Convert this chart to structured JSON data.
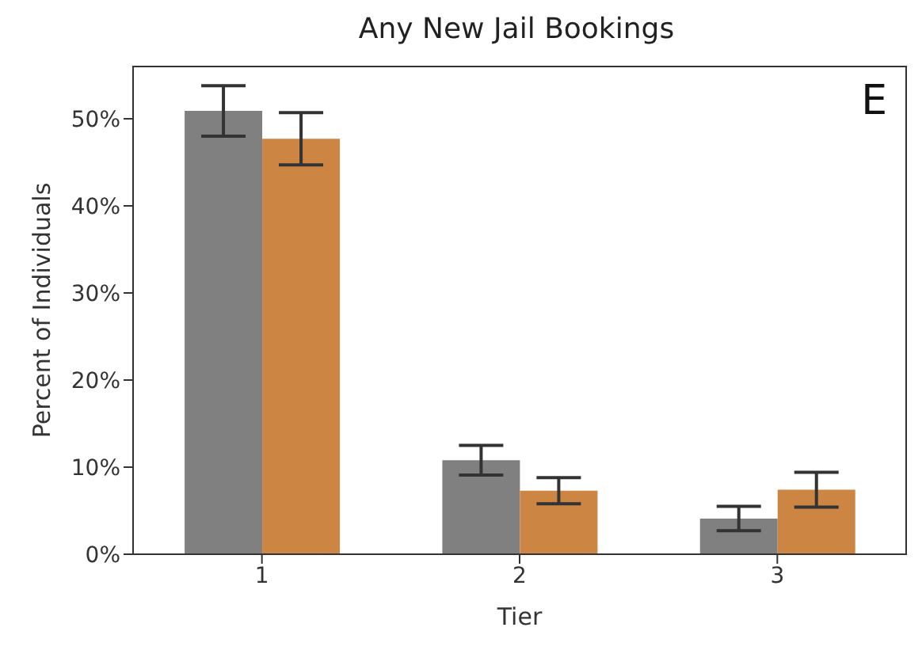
{
  "chart_data": {
    "type": "bar",
    "title": "Any New Jail Bookings",
    "xlabel": "Tier",
    "ylabel": "Percent of Individuals",
    "annotations": [
      "E"
    ],
    "categories": [
      "1",
      "2",
      "3"
    ],
    "series": [
      {
        "color": "#808080",
        "values": [
          50.9,
          10.8,
          4.1
        ],
        "errors": [
          2.9,
          1.7,
          1.4
        ]
      },
      {
        "color": "#cd8544",
        "values": [
          47.7,
          7.3,
          7.4
        ],
        "errors": [
          3.0,
          1.5,
          2.0
        ]
      }
    ],
    "ylim": [
      0,
      56
    ],
    "yticks": [
      {
        "value": 0,
        "label": "0%"
      },
      {
        "value": 10,
        "label": "10%"
      },
      {
        "value": 20,
        "label": "20%"
      },
      {
        "value": 30,
        "label": "30%"
      },
      {
        "value": 40,
        "label": "40%"
      },
      {
        "value": 50,
        "label": "50%"
      }
    ],
    "grid": false,
    "legend": false
  }
}
